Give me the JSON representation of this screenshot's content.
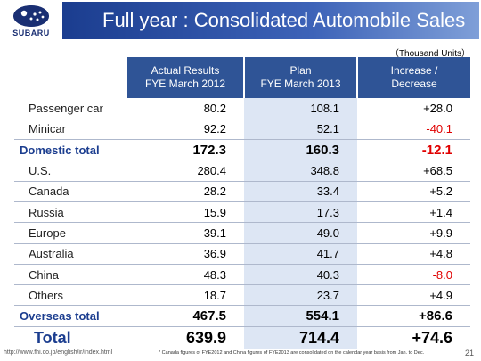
{
  "logo_text": "SUBARU",
  "title": "Full year : Consolidated Automobile Sales",
  "units": "（Thousand Units）",
  "headers": {
    "actual_line1": "Actual Results",
    "actual_line2": "FYE March 2012",
    "plan_line1": "Plan",
    "plan_line2": "FYE March 2013",
    "inc_line1": "Increase /",
    "inc_line2": "Decrease"
  },
  "rows": [
    {
      "name": "Passenger car",
      "actual": "80.2",
      "plan": "108.1",
      "inc": "+28.0"
    },
    {
      "name": "Minicar",
      "actual": "92.2",
      "plan": "52.1",
      "inc": "-40.1"
    },
    {
      "name": "Domestic total",
      "actual": "172.3",
      "plan": "160.3",
      "inc": "-12.1"
    },
    {
      "name": "U.S.",
      "actual": "280.4",
      "plan": "348.8",
      "inc": "+68.5"
    },
    {
      "name": "Canada",
      "actual": "28.2",
      "plan": "33.4",
      "inc": "+5.2"
    },
    {
      "name": "Russia",
      "actual": "15.9",
      "plan": "17.3",
      "inc": "+1.4"
    },
    {
      "name": "Europe",
      "actual": "39.1",
      "plan": "49.0",
      "inc": "+9.9"
    },
    {
      "name": "Australia",
      "actual": "36.9",
      "plan": "41.7",
      "inc": "+4.8"
    },
    {
      "name": "China",
      "actual": "48.3",
      "plan": "40.3",
      "inc": "-8.0"
    },
    {
      "name": "Others",
      "actual": "18.7",
      "plan": "23.7",
      "inc": "+4.9"
    },
    {
      "name": "Overseas total",
      "actual": "467.5",
      "plan": "554.1",
      "inc": "+86.6"
    },
    {
      "name": "Total",
      "actual": "639.9",
      "plan": "714.4",
      "inc": "+74.6"
    }
  ],
  "footer_url": "http://www.fhi.co.jp/english/ir/index.html",
  "footnote": "* Canada figures of FYE2012 and China figures of FYE2013 are consolidated on the calendar year basis from Jan. to Dec.",
  "page_number": "21",
  "colors": {
    "accent": "#2f5496",
    "negative": "#e00000",
    "plan_column": "#dde6f4"
  }
}
